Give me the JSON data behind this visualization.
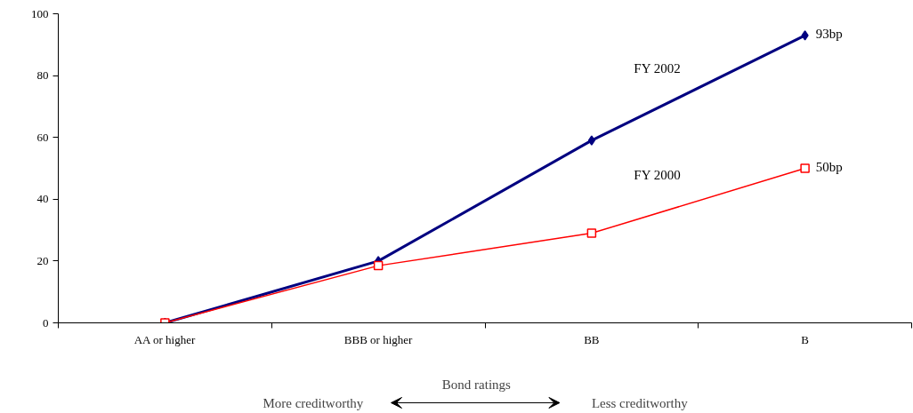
{
  "chart_data": {
    "type": "line",
    "categories": [
      "AA or higher",
      "BBB or higher",
      "BB",
      "B"
    ],
    "xlabel": "Bond ratings",
    "annotations": [
      "More creditworthy",
      "Less creditworthy"
    ],
    "series": [
      {
        "name": "FY 2002",
        "color": "#000080",
        "marker": "diamond",
        "values": [
          0,
          20,
          59,
          93
        ],
        "value_labels": [
          null,
          null,
          null,
          "93bp"
        ]
      },
      {
        "name": "FY 2000",
        "color": "#ff0000",
        "marker": "square",
        "values": [
          0,
          18.5,
          29,
          50
        ],
        "value_labels": [
          null,
          null,
          null,
          "50bp"
        ]
      }
    ],
    "ylim": [
      0,
      100
    ],
    "yticks": [
      0,
      20,
      40,
      60,
      80,
      100
    ],
    "grid": false
  }
}
